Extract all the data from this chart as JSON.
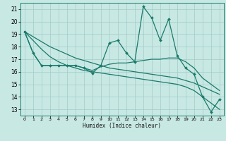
{
  "xlabel": "Humidex (Indice chaleur)",
  "bg_color": "#c8e8e4",
  "grid_color_major": "#a0ccc8",
  "grid_color_minor": "#b8ddd8",
  "line_color": "#1a7a6a",
  "xlim": [
    -0.5,
    23.5
  ],
  "ylim": [
    12.5,
    21.5
  ],
  "yticks": [
    13,
    14,
    15,
    16,
    17,
    18,
    19,
    20,
    21
  ],
  "xticks": [
    0,
    1,
    2,
    3,
    4,
    5,
    6,
    7,
    8,
    9,
    10,
    11,
    12,
    13,
    14,
    15,
    16,
    17,
    18,
    19,
    20,
    21,
    22,
    23
  ],
  "series": [
    {
      "x": [
        0,
        1,
        2,
        3,
        4,
        5,
        6,
        7,
        8,
        9,
        10,
        11,
        12,
        13,
        14,
        15,
        16,
        17,
        18,
        19,
        20,
        21,
        22,
        23
      ],
      "y": [
        19.2,
        17.5,
        16.5,
        16.5,
        16.5,
        16.5,
        16.5,
        16.3,
        15.9,
        16.5,
        18.3,
        18.5,
        17.5,
        16.8,
        21.2,
        20.3,
        18.5,
        20.2,
        17.3,
        16.3,
        15.8,
        14.0,
        12.8,
        13.8
      ],
      "has_markers": true,
      "marker_x": [
        0,
        1,
        2,
        3,
        4,
        5,
        6,
        7,
        8,
        9,
        10,
        11,
        12,
        13,
        14,
        15,
        16,
        17,
        18,
        19,
        20,
        21,
        22,
        23
      ],
      "linewidth": 0.9,
      "markersize": 2.0
    },
    {
      "x": [
        0,
        1,
        2,
        3,
        4,
        5,
        6,
        7,
        8,
        9,
        10,
        11,
        12,
        13,
        14,
        15,
        16,
        17,
        18,
        19,
        20,
        21,
        22,
        23
      ],
      "y": [
        19.2,
        17.5,
        16.5,
        16.5,
        16.5,
        16.5,
        16.5,
        16.3,
        16.1,
        16.4,
        16.6,
        16.7,
        16.7,
        16.8,
        16.9,
        17.0,
        17.0,
        17.1,
        17.1,
        16.8,
        16.3,
        15.5,
        15.0,
        14.5
      ],
      "has_markers": false,
      "linewidth": 0.9,
      "markersize": 0
    },
    {
      "x": [
        0,
        1,
        2,
        3,
        4,
        5,
        6,
        7,
        8,
        9,
        10,
        11,
        12,
        13,
        14,
        15,
        16,
        17,
        18,
        19,
        20,
        21,
        22,
        23
      ],
      "y": [
        19.2,
        18.8,
        18.4,
        18.0,
        17.7,
        17.4,
        17.1,
        16.9,
        16.7,
        16.5,
        16.3,
        16.2,
        16.1,
        16.0,
        15.9,
        15.8,
        15.7,
        15.6,
        15.5,
        15.3,
        15.1,
        14.8,
        14.5,
        14.2
      ],
      "has_markers": false,
      "linewidth": 0.9,
      "markersize": 0
    },
    {
      "x": [
        0,
        1,
        2,
        3,
        4,
        5,
        6,
        7,
        8,
        9,
        10,
        11,
        12,
        13,
        14,
        15,
        16,
        17,
        18,
        19,
        20,
        21,
        22,
        23
      ],
      "y": [
        19.2,
        18.5,
        17.8,
        17.2,
        16.8,
        16.5,
        16.3,
        16.1,
        16.0,
        15.9,
        15.8,
        15.7,
        15.6,
        15.5,
        15.4,
        15.3,
        15.2,
        15.1,
        15.0,
        14.8,
        14.5,
        14.0,
        13.5,
        13.0
      ],
      "has_markers": false,
      "linewidth": 0.9,
      "markersize": 0
    }
  ]
}
